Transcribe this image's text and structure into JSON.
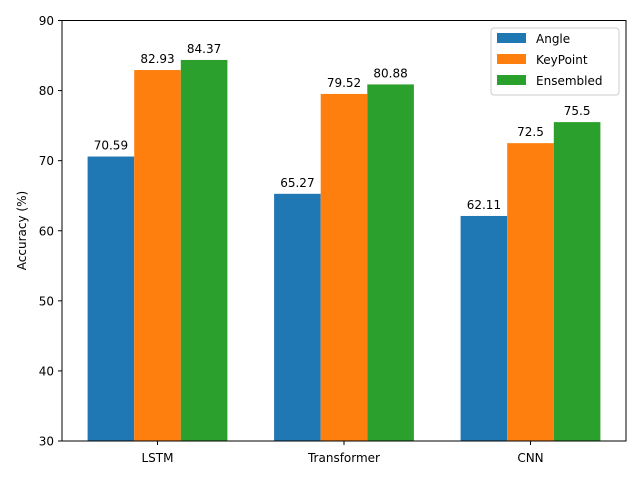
{
  "chart_data": {
    "type": "bar",
    "categories": [
      "LSTM",
      "Transformer",
      "CNN"
    ],
    "series": [
      {
        "name": "Angle",
        "color": "#1f77b4",
        "values": [
          70.59,
          65.27,
          62.11
        ]
      },
      {
        "name": "KeyPoint",
        "color": "#ff7f0e",
        "values": [
          82.93,
          79.52,
          72.5
        ]
      },
      {
        "name": "Ensembled",
        "color": "#2ca02c",
        "values": [
          84.37,
          80.88,
          75.5
        ]
      }
    ],
    "data_labels": [
      [
        "70.59",
        "65.27",
        "62.11"
      ],
      [
        "82.93",
        "79.52",
        "72.5"
      ],
      [
        "84.37",
        "80.88",
        "75.5"
      ]
    ],
    "title": "",
    "xlabel": "",
    "ylabel": "Accuracy (%)",
    "ylim": [
      30,
      90
    ],
    "yticks": [
      30,
      40,
      50,
      60,
      70,
      80,
      90
    ],
    "grid": false,
    "legend_position": "top-right"
  }
}
